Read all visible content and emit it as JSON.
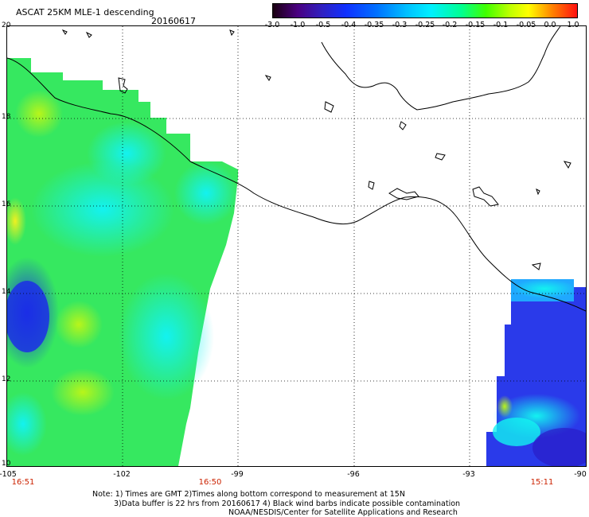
{
  "title": "ASCAT 25KM MLE-1 descending",
  "date": "20160617",
  "colorbar": {
    "ticks": [
      "-3.0",
      "-1.0",
      "-0.5",
      "-0.4",
      "-0.35",
      "-0.3",
      "-0.25",
      "-0.2",
      "-0.15",
      "-0.1",
      "-0.05",
      "0.0",
      "1.0"
    ]
  },
  "map": {
    "lat_labels": [
      "20",
      "18",
      "16",
      "14",
      "12",
      "10"
    ],
    "lon_labels": [
      "-105",
      "-102",
      "-99",
      "-96",
      "-93",
      "-90"
    ],
    "time_labels": [
      "16:51",
      "16:50",
      "15:11"
    ]
  },
  "notes": {
    "line1": "Note: 1) Times are GMT 2)Times along bottom correspond to measurement at 15N",
    "line2": "3)Data buffer is 22 hrs from 20160617 4) Black wind barbs indicate possible contamination",
    "line3": "NOAA/NESDIS/Center for Satellite Applications and Research"
  }
}
